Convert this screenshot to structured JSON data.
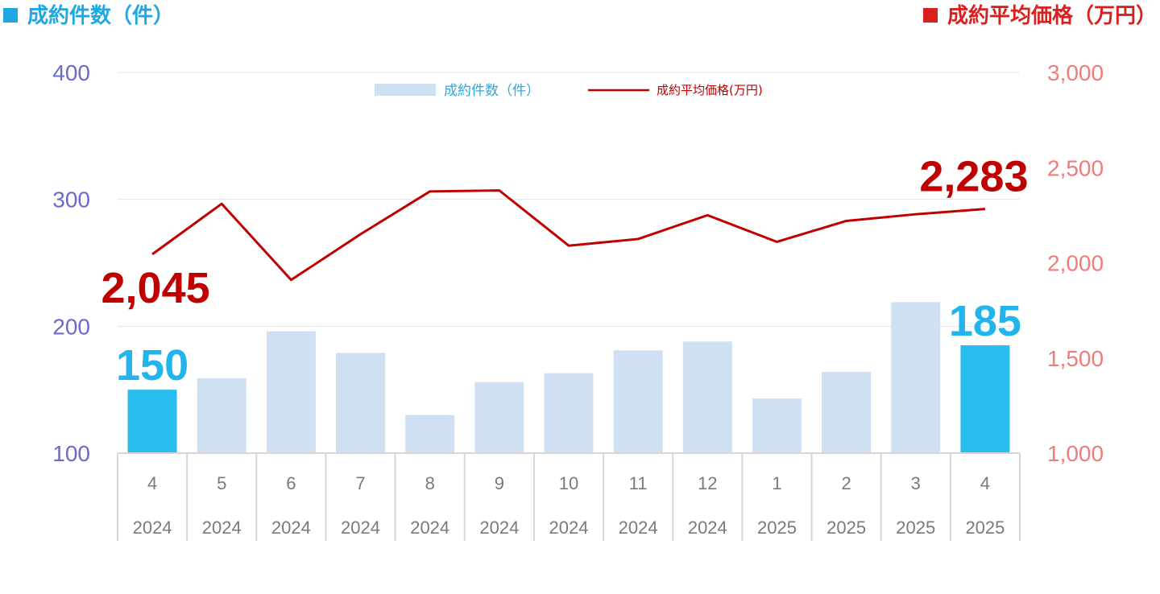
{
  "header": {
    "left_label": "成約件数（件）",
    "left_color": "#1ea7e0",
    "right_label": "成約平均価格（万円）",
    "right_color": "#d9201f"
  },
  "legend": {
    "bar_label": "成約件数（件）",
    "line_label": "成約平均価格(万円)"
  },
  "chart_data": {
    "type": "bar",
    "combo": "bar+line",
    "categories": [
      [
        "4",
        "2024"
      ],
      [
        "5",
        "2024"
      ],
      [
        "6",
        "2024"
      ],
      [
        "7",
        "2024"
      ],
      [
        "8",
        "2024"
      ],
      [
        "9",
        "2024"
      ],
      [
        "10",
        "2024"
      ],
      [
        "11",
        "2024"
      ],
      [
        "12",
        "2024"
      ],
      [
        "1",
        "2025"
      ],
      [
        "2",
        "2025"
      ],
      [
        "3",
        "2025"
      ],
      [
        "4",
        "2025"
      ]
    ],
    "series": [
      {
        "name": "成約件数（件）",
        "kind": "bar",
        "axis": "left",
        "values": [
          150,
          159,
          196,
          179,
          130,
          156,
          163,
          181,
          188,
          143,
          164,
          219,
          185
        ],
        "color": "#cfe0f3",
        "highlight_color": "#29bdef",
        "highlight_indices": [
          0,
          12
        ]
      },
      {
        "name": "成約平均価格(万円)",
        "kind": "line",
        "axis": "right",
        "values": [
          2045,
          2310,
          1910,
          2150,
          2375,
          2380,
          2090,
          2125,
          2250,
          2110,
          2220,
          2255,
          2283
        ],
        "color": "#c00000"
      }
    ],
    "left_axis": {
      "ylim": [
        100,
        400
      ],
      "ticks": [
        "100",
        "200",
        "300",
        "400"
      ],
      "color": "#6b6bc8"
    },
    "right_axis": {
      "ylim": [
        1000,
        3000
      ],
      "ticks": [
        "1,000",
        "1,500",
        "2,000",
        "2,500",
        "3,000"
      ],
      "color": "#f07b7b"
    },
    "grid": true,
    "legend_position": "top-center",
    "annotations": [
      {
        "series": 0,
        "index": 0,
        "text": "150"
      },
      {
        "series": 0,
        "index": 12,
        "text": "185"
      },
      {
        "series": 1,
        "index": 0,
        "text": "2,045"
      },
      {
        "series": 1,
        "index": 12,
        "text": "2,283"
      }
    ]
  }
}
